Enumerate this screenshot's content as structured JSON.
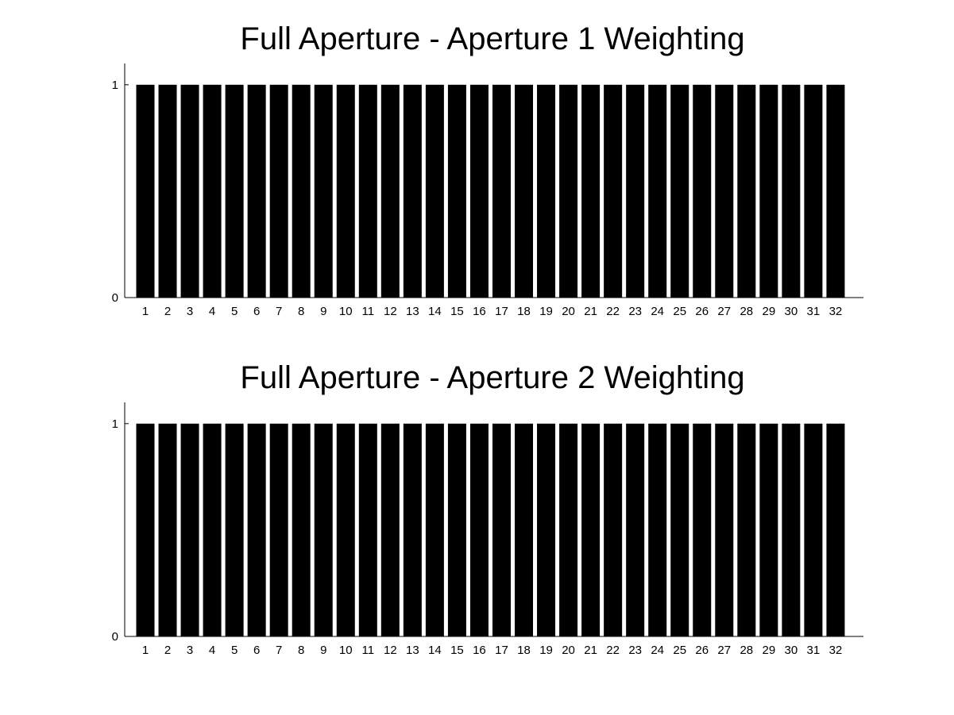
{
  "chart_data": [
    {
      "type": "bar",
      "title": "Full Aperture - Aperture 1 Weighting",
      "categories": [
        "1",
        "2",
        "3",
        "4",
        "5",
        "6",
        "7",
        "8",
        "9",
        "10",
        "11",
        "12",
        "13",
        "14",
        "15",
        "16",
        "17",
        "18",
        "19",
        "20",
        "21",
        "22",
        "23",
        "24",
        "25",
        "26",
        "27",
        "28",
        "29",
        "30",
        "31",
        "32"
      ],
      "values": [
        1,
        1,
        1,
        1,
        1,
        1,
        1,
        1,
        1,
        1,
        1,
        1,
        1,
        1,
        1,
        1,
        1,
        1,
        1,
        1,
        1,
        1,
        1,
        1,
        1,
        1,
        1,
        1,
        1,
        1,
        1,
        1
      ],
      "ylim": [
        0,
        1.1
      ],
      "yticks": [
        "0",
        "1"
      ],
      "bar_color": "#000000",
      "grid": false
    },
    {
      "type": "bar",
      "title": "Full Aperture - Aperture 2 Weighting",
      "categories": [
        "1",
        "2",
        "3",
        "4",
        "5",
        "6",
        "7",
        "8",
        "9",
        "10",
        "11",
        "12",
        "13",
        "14",
        "15",
        "16",
        "17",
        "18",
        "19",
        "20",
        "21",
        "22",
        "23",
        "24",
        "25",
        "26",
        "27",
        "28",
        "29",
        "30",
        "31",
        "32"
      ],
      "values": [
        1,
        1,
        1,
        1,
        1,
        1,
        1,
        1,
        1,
        1,
        1,
        1,
        1,
        1,
        1,
        1,
        1,
        1,
        1,
        1,
        1,
        1,
        1,
        1,
        1,
        1,
        1,
        1,
        1,
        1,
        1,
        1
      ],
      "ylim": [
        0,
        1.1
      ],
      "yticks": [
        "0",
        "1"
      ],
      "bar_color": "#000000",
      "grid": false
    }
  ]
}
